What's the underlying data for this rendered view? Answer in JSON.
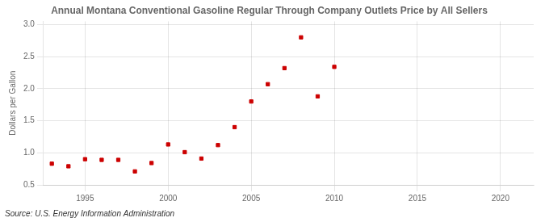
{
  "chart_data": {
    "type": "scatter",
    "title": "Annual Montana Conventional Gasoline Regular Through Company Outlets Price by All Sellers",
    "y_label": "Dollars per Gallon",
    "annotations": [
      "Source: U.S. Energy Information Administration"
    ],
    "x": [
      1993,
      1994,
      1995,
      1996,
      1997,
      1998,
      1999,
      2000,
      2001,
      2002,
      2003,
      2004,
      2005,
      2006,
      2007,
      2008,
      2009,
      2010
    ],
    "values": [
      0.83,
      0.79,
      0.9,
      0.89,
      0.89,
      0.71,
      0.84,
      1.13,
      1.01,
      0.91,
      1.12,
      1.4,
      1.8,
      2.07,
      2.32,
      2.8,
      1.88,
      2.34
    ],
    "color": "#cc0000",
    "marker": "square",
    "xlim": [
      1992.5,
      2022
    ],
    "xticks": [
      1995,
      2000,
      2005,
      2010,
      2015,
      2020
    ],
    "ylim": [
      0.5,
      3.05
    ],
    "yticks": [
      0.5,
      {
        "value": 1.0,
        "label": "1.0"
      },
      1.5,
      {
        "value": 2.0,
        "label": "2.0"
      },
      2.5,
      {
        "value": 3.0,
        "label": "3.0"
      }
    ],
    "grid": true
  }
}
